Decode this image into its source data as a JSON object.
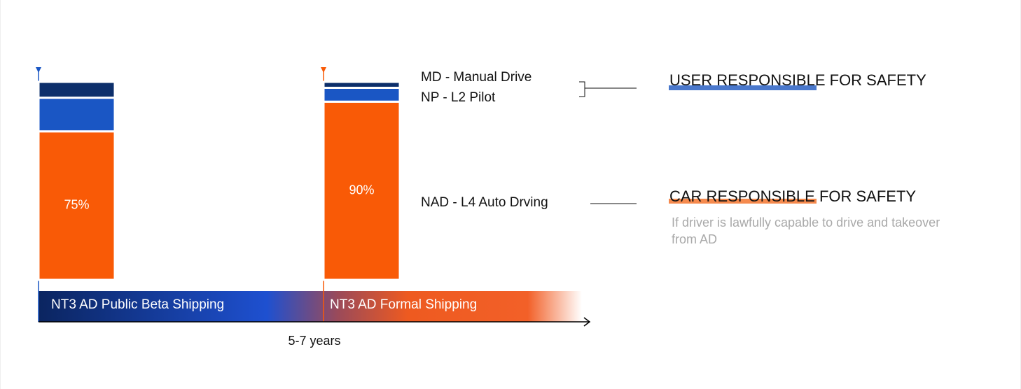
{
  "chart_data": {
    "type": "bar",
    "stacked": true,
    "categories": [
      "NT3 AD Public Beta Shipping",
      "NT3 AD Formal Shipping"
    ],
    "xlabel": "5-7 years",
    "series": [
      {
        "name": "NAD - L4 Auto Drving",
        "color": "#f95a06",
        "values": [
          75,
          90
        ],
        "value_labels": [
          "75%",
          "90%"
        ]
      },
      {
        "name": "NP - L2 Pilot",
        "color": "#1a56c4",
        "values": [
          17,
          7
        ]
      },
      {
        "name": "MD - Manual Drive",
        "color": "#0d2f6b",
        "values": [
          8,
          3
        ]
      }
    ],
    "ylim": [
      0,
      100
    ],
    "annotations": [
      "USER RESPONSIBLE FOR SAFETY",
      "CAR RESPONSIBLE FOR SAFETY",
      "If driver is lawfully capable to drive and takeover from AD"
    ]
  }
}
